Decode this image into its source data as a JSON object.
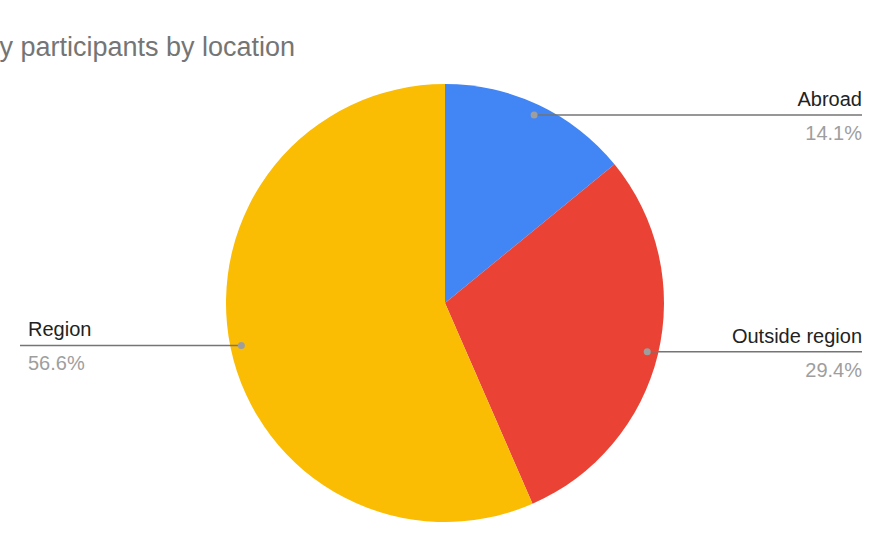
{
  "chart_data": {
    "type": "pie",
    "title": "Distribution of survey participants by location",
    "categories": [
      "Abroad",
      "Outside region",
      "Region"
    ],
    "values": [
      14.1,
      29.4,
      56.6
    ],
    "colors": [
      "#4285f4",
      "#ea4335",
      "#fbbc04"
    ],
    "data_labels": true,
    "value_labels": [
      "14.1%",
      "29.4%",
      "56.6%"
    ]
  }
}
